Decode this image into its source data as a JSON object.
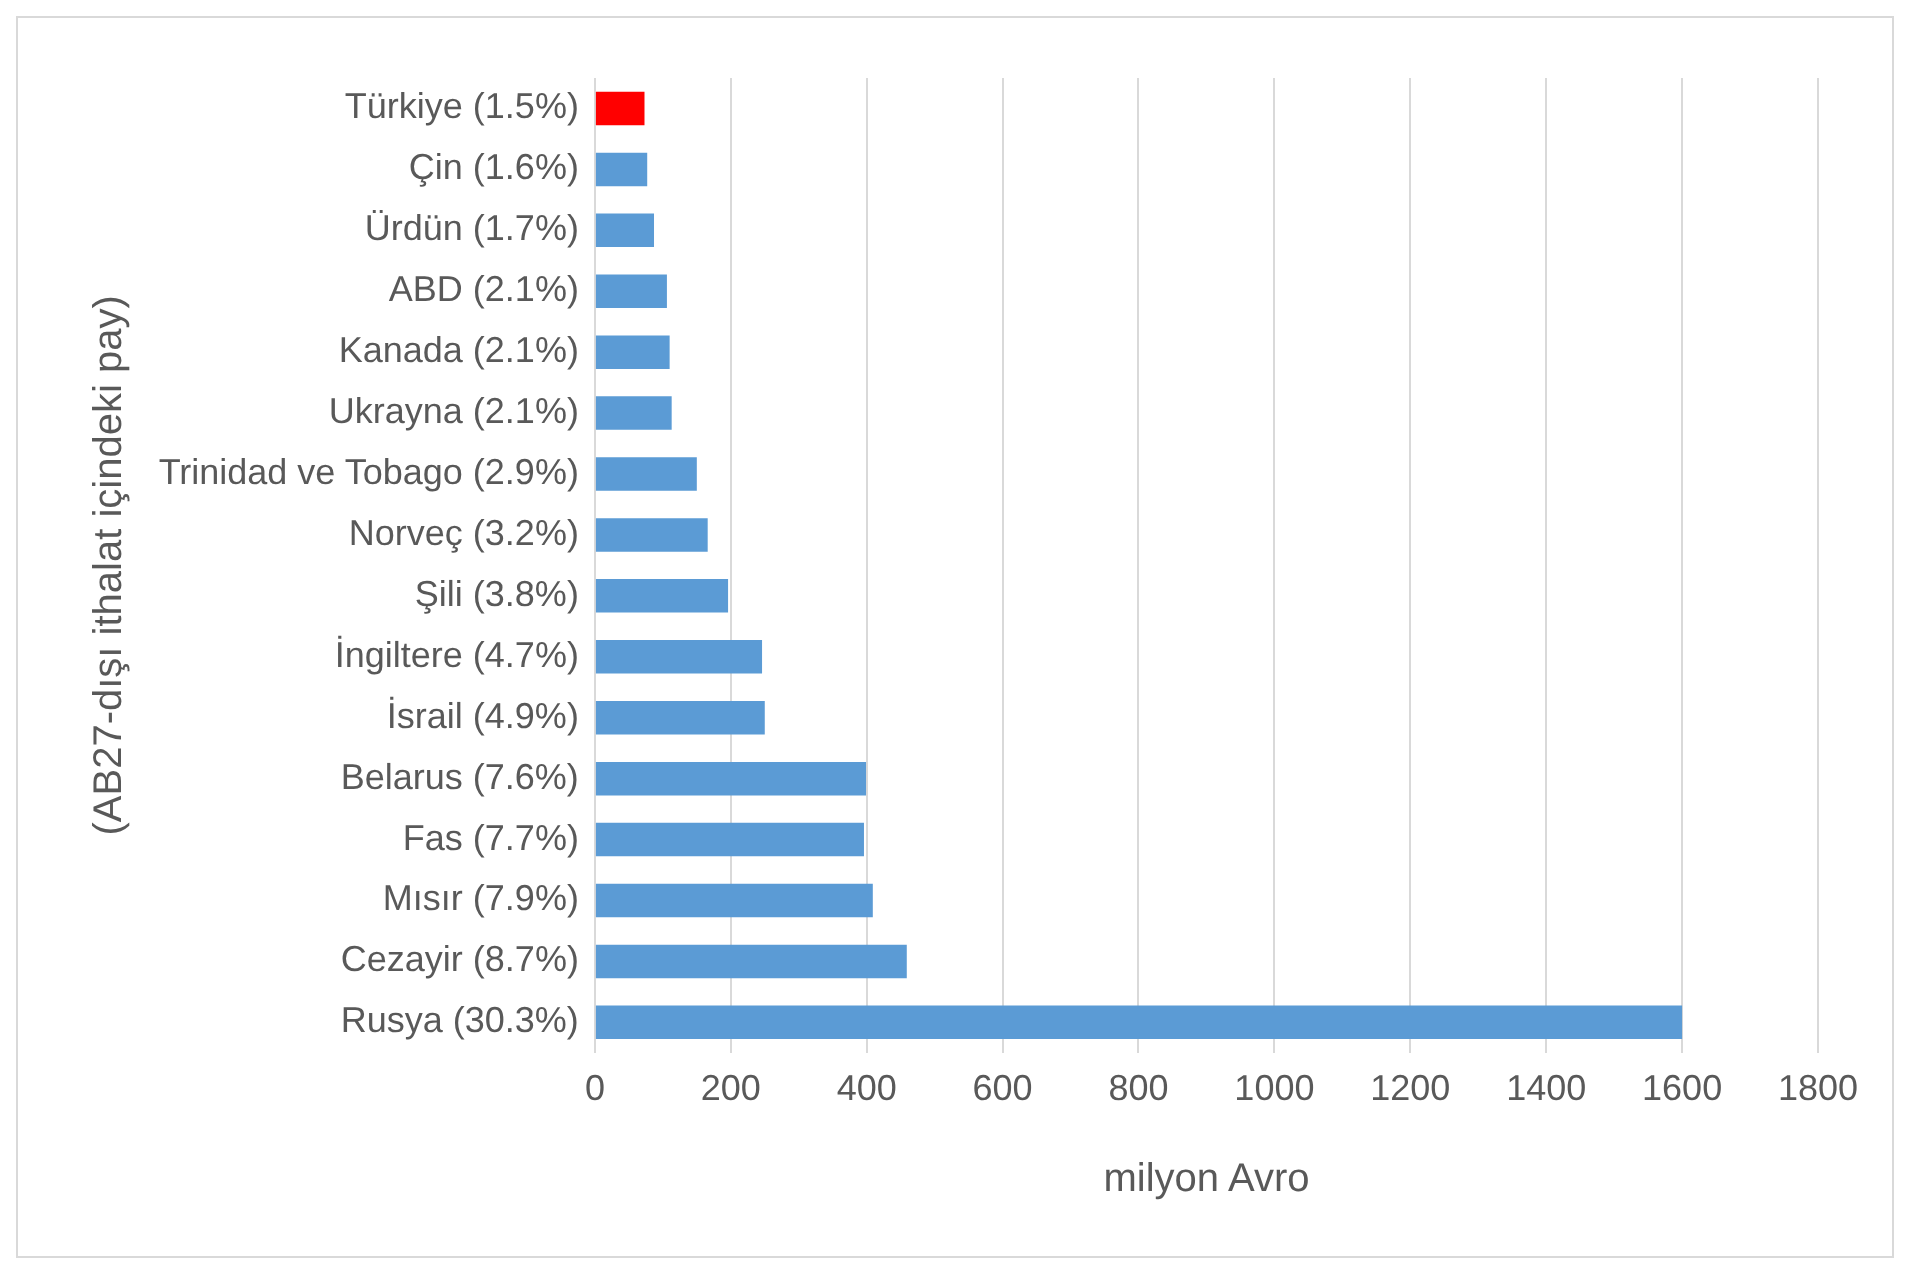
{
  "chart_data": {
    "type": "bar",
    "orientation": "horizontal",
    "xlabel": "milyon Avro",
    "ylabel": "(AB27-dışı ithalat içindeki pay)",
    "categories": [
      "Türkiye (1.5%)",
      "Çin (1.6%)",
      "Ürdün (1.7%)",
      "ABD (2.1%)",
      "Kanada (2.1%)",
      "Ukrayna (2.1%)",
      "Trinidad ve Tobago (2.9%)",
      "Norveç (3.2%)",
      "Şili (3.8%)",
      "İngiltere (4.7%)",
      "İsrail (4.9%)",
      "Belarus (7.6%)",
      "Fas (7.7%)",
      "Mısır (7.9%)",
      "Cezayir (8.7%)",
      "Rusya (30.3%)"
    ],
    "values": [
      73,
      77,
      87,
      106,
      110,
      113,
      150,
      166,
      196,
      246,
      250,
      399,
      396,
      409,
      459,
      1600
    ],
    "colors": [
      "#ff0000",
      "#5b9bd5",
      "#5b9bd5",
      "#5b9bd5",
      "#5b9bd5",
      "#5b9bd5",
      "#5b9bd5",
      "#5b9bd5",
      "#5b9bd5",
      "#5b9bd5",
      "#5b9bd5",
      "#5b9bd5",
      "#5b9bd5",
      "#5b9bd5",
      "#5b9bd5",
      "#5b9bd5"
    ],
    "xlim": [
      0,
      1800
    ],
    "xticks": [
      0,
      200,
      400,
      600,
      800,
      1000,
      1200,
      1400,
      1600,
      1800
    ],
    "grid": "x",
    "legend": false
  }
}
